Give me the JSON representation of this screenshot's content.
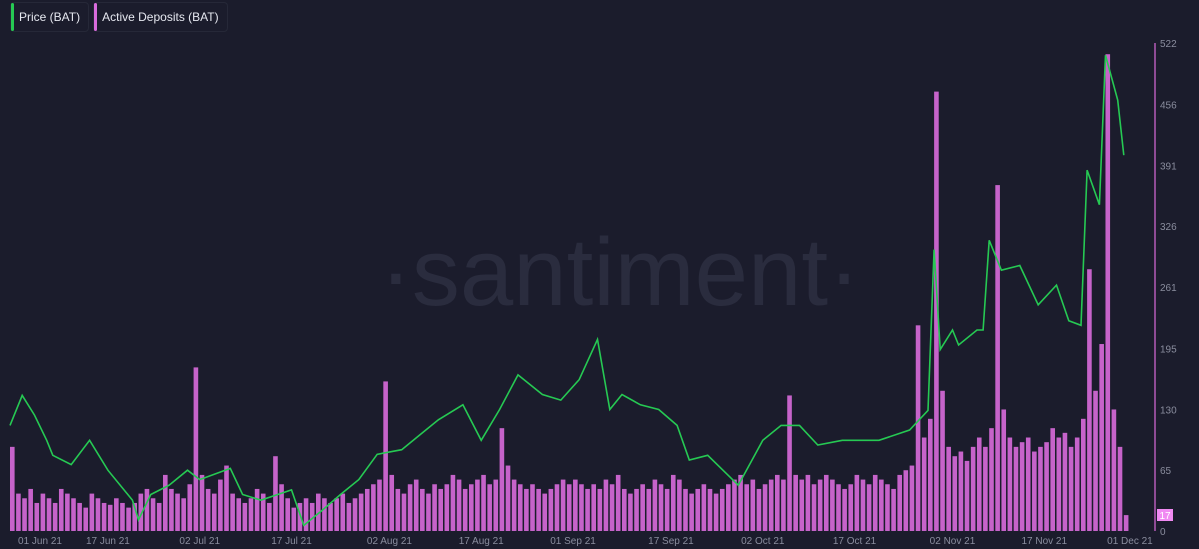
{
  "legend": [
    {
      "label": "Price (BAT)",
      "color": "#26c953"
    },
    {
      "label": "Active Deposits (BAT)",
      "color": "#d96bdc"
    }
  ],
  "watermark": "·santiment·",
  "chart_data": {
    "type": "bar+line",
    "background": "#1b1c2c",
    "y_axis": {
      "position": "right",
      "ticks": [
        0,
        65,
        130,
        195,
        261,
        326,
        391,
        456,
        522
      ],
      "range": [
        0,
        522
      ]
    },
    "x_axis": {
      "ticks": [
        "01 Jun 21",
        "17 Jun 21",
        "02 Jul 21",
        "17 Jul 21",
        "02 Aug 21",
        "17 Aug 21",
        "01 Sep 21",
        "17 Sep 21",
        "02 Oct 21",
        "17 Oct 21",
        "02 Nov 21",
        "17 Nov 21",
        "01 Dec 21"
      ],
      "tick_dates": [
        "2021-06-01",
        "2021-06-17",
        "2021-07-02",
        "2021-07-17",
        "2021-08-02",
        "2021-08-17",
        "2021-09-01",
        "2021-09-17",
        "2021-10-02",
        "2021-10-17",
        "2021-11-02",
        "2021-11-17",
        "2021-12-01"
      ]
    },
    "last_value_label": "17",
    "series": [
      {
        "name": "Active Deposits (BAT)",
        "type": "bar",
        "color": "#d96bdc",
        "start_date": "2021-06-01",
        "values": [
          90,
          40,
          35,
          45,
          30,
          40,
          35,
          30,
          45,
          40,
          35,
          30,
          25,
          40,
          35,
          30,
          28,
          35,
          30,
          25,
          30,
          40,
          45,
          35,
          30,
          60,
          45,
          40,
          35,
          50,
          175,
          60,
          45,
          40,
          55,
          70,
          40,
          35,
          30,
          35,
          45,
          40,
          30,
          80,
          50,
          35,
          25,
          30,
          35,
          30,
          40,
          35,
          30,
          35,
          40,
          30,
          35,
          40,
          45,
          50,
          55,
          160,
          60,
          45,
          40,
          50,
          55,
          45,
          40,
          50,
          45,
          50,
          60,
          55,
          45,
          50,
          55,
          60,
          50,
          55,
          110,
          70,
          55,
          50,
          45,
          50,
          45,
          40,
          45,
          50,
          55,
          50,
          55,
          50,
          45,
          50,
          45,
          55,
          50,
          60,
          45,
          40,
          45,
          50,
          45,
          55,
          50,
          45,
          60,
          55,
          45,
          40,
          45,
          50,
          45,
          40,
          45,
          50,
          55,
          60,
          50,
          55,
          45,
          50,
          55,
          60,
          55,
          145,
          60,
          55,
          60,
          50,
          55,
          60,
          55,
          50,
          45,
          50,
          60,
          55,
          50,
          60,
          55,
          50,
          45,
          60,
          65,
          70,
          220,
          100,
          120,
          470,
          150,
          90,
          80,
          85,
          75,
          90,
          100,
          90,
          110,
          370,
          130,
          100,
          90,
          95,
          100,
          85,
          90,
          95,
          110,
          100,
          105,
          90,
          100,
          120,
          280,
          150,
          200,
          510,
          130,
          90,
          17
        ]
      },
      {
        "name": "Price (BAT)",
        "type": "line",
        "color": "#26c953",
        "points": [
          [
            "2021-06-01",
            113
          ],
          [
            "2021-06-03",
            145
          ],
          [
            "2021-06-05",
            124
          ],
          [
            "2021-06-07",
            97
          ],
          [
            "2021-06-08",
            81
          ],
          [
            "2021-06-11",
            71
          ],
          [
            "2021-06-14",
            97
          ],
          [
            "2021-06-17",
            65
          ],
          [
            "2021-06-21",
            33
          ],
          [
            "2021-06-22",
            12
          ],
          [
            "2021-06-24",
            39
          ],
          [
            "2021-06-27",
            49
          ],
          [
            "2021-06-30",
            65
          ],
          [
            "2021-07-02",
            55
          ],
          [
            "2021-07-07",
            67
          ],
          [
            "2021-07-09",
            39
          ],
          [
            "2021-07-12",
            33
          ],
          [
            "2021-07-17",
            44
          ],
          [
            "2021-07-19",
            6
          ],
          [
            "2021-07-22",
            22
          ],
          [
            "2021-07-25",
            39
          ],
          [
            "2021-07-28",
            55
          ],
          [
            "2021-07-31",
            82
          ],
          [
            "2021-08-04",
            87
          ],
          [
            "2021-08-07",
            103
          ],
          [
            "2021-08-10",
            119
          ],
          [
            "2021-08-14",
            135
          ],
          [
            "2021-08-17",
            97
          ],
          [
            "2021-08-20",
            130
          ],
          [
            "2021-08-23",
            167
          ],
          [
            "2021-08-27",
            146
          ],
          [
            "2021-08-30",
            140
          ],
          [
            "2021-09-02",
            162
          ],
          [
            "2021-09-05",
            205
          ],
          [
            "2021-09-07",
            130
          ],
          [
            "2021-09-09",
            146
          ],
          [
            "2021-09-12",
            135
          ],
          [
            "2021-09-15",
            130
          ],
          [
            "2021-09-18",
            113
          ],
          [
            "2021-09-20",
            76
          ],
          [
            "2021-09-23",
            81
          ],
          [
            "2021-09-28",
            49
          ],
          [
            "2021-10-02",
            97
          ],
          [
            "2021-10-05",
            113
          ],
          [
            "2021-10-08",
            113
          ],
          [
            "2021-10-11",
            92
          ],
          [
            "2021-10-15",
            97
          ],
          [
            "2021-10-18",
            97
          ],
          [
            "2021-10-21",
            97
          ],
          [
            "2021-10-26",
            108
          ],
          [
            "2021-10-29",
            129
          ],
          [
            "2021-10-30",
            301
          ],
          [
            "2021-10-31",
            194
          ],
          [
            "2021-11-02",
            215
          ],
          [
            "2021-11-03",
            199
          ],
          [
            "2021-11-06",
            215
          ],
          [
            "2021-11-07",
            215
          ],
          [
            "2021-11-08",
            311
          ],
          [
            "2021-11-10",
            279
          ],
          [
            "2021-11-13",
            284
          ],
          [
            "2021-11-16",
            242
          ],
          [
            "2021-11-19",
            263
          ],
          [
            "2021-11-21",
            225
          ],
          [
            "2021-11-23",
            220
          ],
          [
            "2021-11-24",
            386
          ],
          [
            "2021-11-26",
            349
          ],
          [
            "2021-11-27",
            509
          ],
          [
            "2021-11-29",
            461
          ],
          [
            "2021-11-30",
            402
          ]
        ]
      }
    ]
  }
}
